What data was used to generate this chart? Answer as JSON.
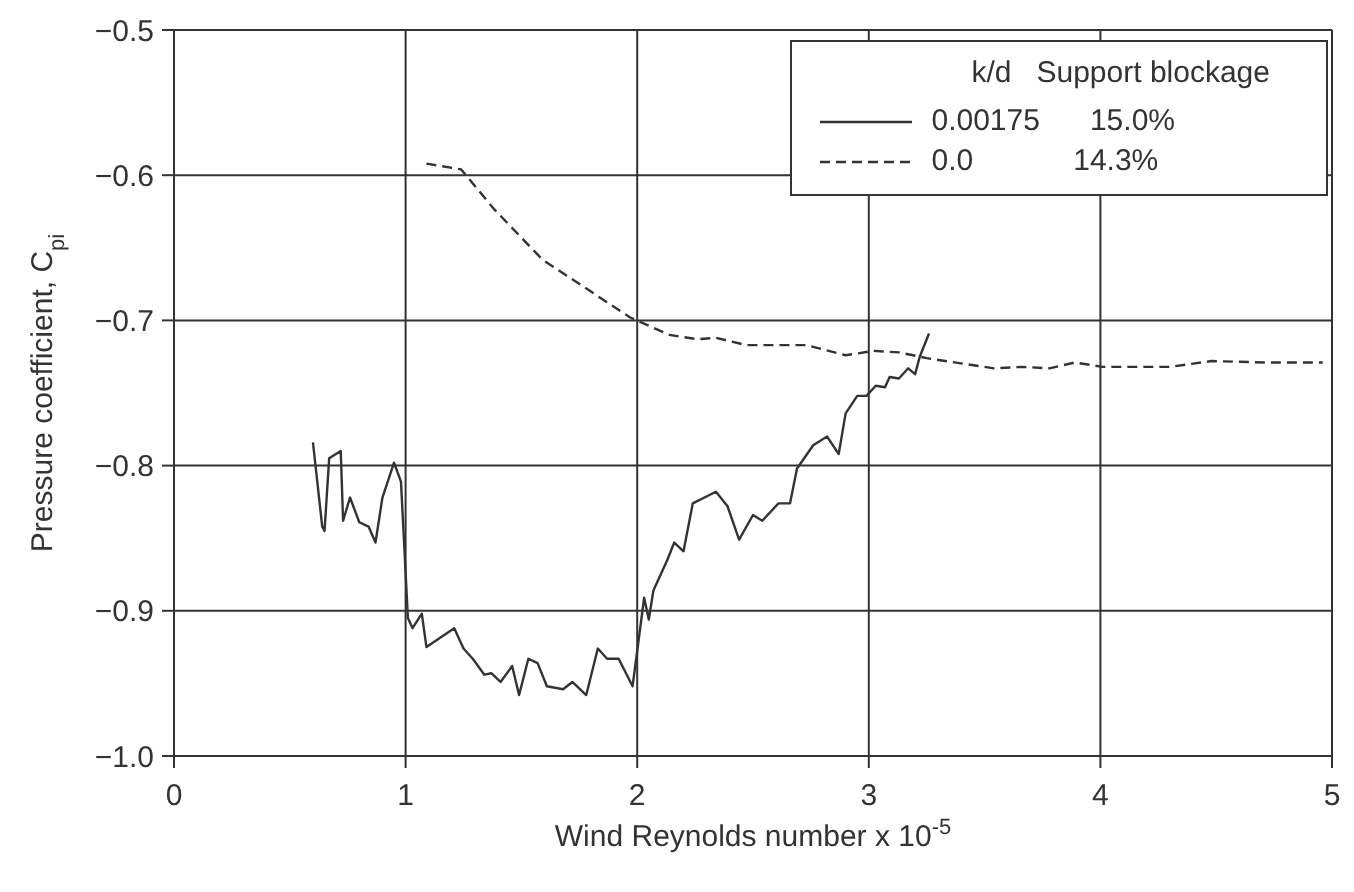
{
  "chart_data": {
    "type": "line",
    "xlabel": "Wind Reynolds number x 10$^{-5}$",
    "ylabel": "Pressure coefficient, C$_{pi}$",
    "legend_title": "k/d   Support blockage",
    "xlim": [
      0,
      5
    ],
    "xticks": [
      0,
      1,
      2,
      3,
      4,
      5
    ],
    "ylim": [
      -1.0,
      -0.5
    ],
    "yticks": [
      {
        "value": -1.0,
        "label": "−1.0"
      },
      {
        "value": -0.9,
        "label": "−0.9"
      },
      {
        "value": -0.8,
        "label": "−0.8"
      },
      {
        "value": -0.7,
        "label": "−0.7"
      },
      {
        "value": -0.6,
        "label": "−0.6"
      },
      {
        "value": -0.5,
        "label": "−0.5"
      }
    ],
    "grid": true,
    "legend": "top right",
    "marker": "none",
    "series": [
      {
        "name": "0.00175      15.0%",
        "color": "#333333",
        "line_style": "solid",
        "x": [
          0.6,
          0.64,
          0.65,
          0.67,
          0.72,
          0.73,
          0.76,
          0.8,
          0.84,
          0.87,
          0.9,
          0.95,
          0.98,
          1.01,
          1.03,
          1.07,
          1.09,
          1.21,
          1.25,
          1.29,
          1.34,
          1.37,
          1.41,
          1.46,
          1.49,
          1.53,
          1.57,
          1.61,
          1.68,
          1.72,
          1.78,
          1.83,
          1.87,
          1.92,
          1.98,
          2.03,
          2.05,
          2.07,
          2.13,
          2.16,
          2.2,
          2.24,
          2.34,
          2.39,
          2.44,
          2.5,
          2.54,
          2.61,
          2.66,
          2.69,
          2.76,
          2.82,
          2.87,
          2.9,
          2.95,
          2.99,
          3.03,
          3.07,
          3.09,
          3.13,
          3.17,
          3.2,
          3.22,
          3.26
        ],
        "values": [
          -0.784,
          -0.842,
          -0.845,
          -0.795,
          -0.79,
          -0.838,
          -0.822,
          -0.839,
          -0.842,
          -0.853,
          -0.822,
          -0.798,
          -0.811,
          -0.905,
          -0.912,
          -0.902,
          -0.925,
          -0.912,
          -0.926,
          -0.933,
          -0.944,
          -0.943,
          -0.949,
          -0.938,
          -0.958,
          -0.933,
          -0.936,
          -0.952,
          -0.954,
          -0.949,
          -0.958,
          -0.926,
          -0.933,
          -0.933,
          -0.952,
          -0.891,
          -0.906,
          -0.886,
          -0.865,
          -0.853,
          -0.859,
          -0.826,
          -0.818,
          -0.828,
          -0.851,
          -0.834,
          -0.838,
          -0.826,
          -0.826,
          -0.802,
          -0.786,
          -0.78,
          -0.792,
          -0.764,
          -0.752,
          -0.752,
          -0.745,
          -0.746,
          -0.739,
          -0.74,
          -0.733,
          -0.737,
          -0.725,
          -0.709
        ]
      },
      {
        "name": "0.0            14.3%",
        "color": "#333333",
        "line_style": "dashed",
        "x": [
          1.09,
          1.24,
          1.38,
          1.59,
          1.77,
          1.97,
          2.14,
          2.26,
          2.34,
          2.47,
          2.73,
          2.9,
          3.02,
          3.13,
          3.25,
          3.54,
          3.66,
          3.78,
          3.89,
          4.01,
          4.18,
          4.3,
          4.48,
          4.71,
          4.96
        ],
        "values": [
          -0.592,
          -0.596,
          -0.623,
          -0.658,
          -0.677,
          -0.698,
          -0.71,
          -0.713,
          -0.712,
          -0.717,
          -0.717,
          -0.724,
          -0.721,
          -0.722,
          -0.726,
          -0.733,
          -0.732,
          -0.733,
          -0.729,
          -0.732,
          -0.732,
          -0.732,
          -0.728,
          -0.729,
          -0.729
        ]
      }
    ]
  }
}
